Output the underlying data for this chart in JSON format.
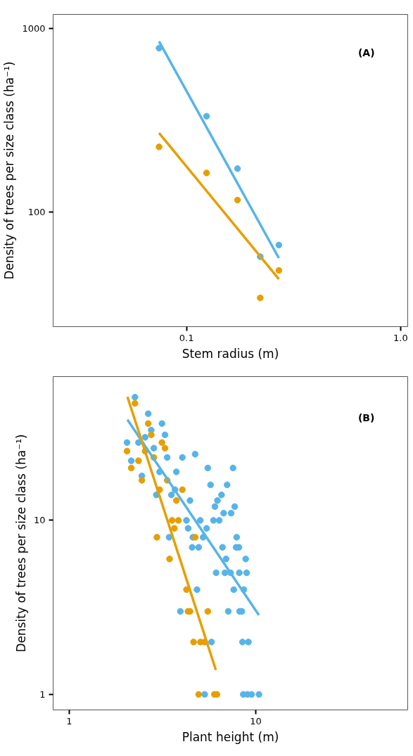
{
  "chart_data": [
    {
      "type": "scatter",
      "xlabel": "Stem radius (m)",
      "ylabel": "Density of trees per size class (ha⁻¹)",
      "annotations": [
        "(A)"
      ],
      "log": "xy",
      "grid": false,
      "xlim": [
        0.0238,
        1.08
      ],
      "ylim": [
        23.7,
        1190
      ],
      "xticks": [
        0.1,
        {
          "value": 1,
          "label": "1.0"
        }
      ],
      "yticks": [
        100,
        1000
      ],
      "series": [
        {
          "marker": "circle",
          "color": "#56b4e9",
          "x": [
            0.0744,
            0.124,
            0.173,
            0.221,
            0.27
          ],
          "values": [
            780,
            332,
            172,
            57,
            66
          ]
        },
        {
          "marker": "circle",
          "color": "#e69f00",
          "x": [
            0.0744,
            0.124,
            0.173,
            0.221,
            0.27
          ],
          "values": [
            226,
            163,
            116,
            34,
            48
          ]
        },
        {
          "type": "line",
          "marker": "none",
          "color": "#56b4e9",
          "x": [
            0.0744,
            0.27
          ],
          "values": [
            848,
            56
          ]
        },
        {
          "type": "line",
          "marker": "none",
          "color": "#e69f00",
          "x": [
            0.0744,
            0.27
          ],
          "values": [
            269,
            43
          ]
        }
      ]
    },
    {
      "type": "scatter",
      "xlabel": "Plant height (m)",
      "ylabel": "Density of trees per size class (ha⁻¹)",
      "annotations": [
        "(B)"
      ],
      "log": "xy",
      "grid": false,
      "xlim": [
        0.819,
        65.3
      ],
      "ylim": [
        0.814,
        67
      ],
      "xticks": [
        1,
        10
      ],
      "yticks": [
        1,
        10
      ],
      "series": [
        {
          "marker": "circle",
          "color": "#56b4e9",
          "x": [
            2.25,
            2.65,
            3.14,
            2.75,
            3.26,
            2.55,
            2.04,
            2.35,
            2.84,
            4.73,
            3.35,
            4.04,
            2.15,
            5.53,
            7.55,
            3.05,
            3.75,
            2.45,
            5.72,
            7.02,
            3.69,
            2.93,
            3.53,
            6.55,
            4.44,
            6.23,
            6.04,
            7.71,
            6.73,
            7.38,
            4.25,
            5.04,
            5.93,
            6.37,
            4.34,
            5.45,
            3.43,
            4.6,
            5.22,
            7.9,
            4.56,
            4.94,
            6.63,
            7.85,
            8.12,
            6.93,
            8.83,
            6.13,
            6.83,
            7.33,
            8.16,
            8.93,
            4.84,
            7.62,
            8.63,
            3.94,
            7.12,
            8.19,
            8.42,
            5.79,
            8.49,
            9.13,
            5.32,
            8.57,
            9.03,
            9.5,
            10.4
          ],
          "values": [
            51,
            41,
            36,
            33,
            31,
            30,
            28,
            28,
            26,
            24,
            23,
            23,
            22,
            20,
            20,
            19,
            19,
            18,
            16,
            16,
            15,
            14,
            14,
            14,
            13,
            13,
            12,
            12,
            11,
            11,
            10,
            10,
            10,
            10,
            9,
            9,
            8,
            8,
            8,
            8,
            7,
            7,
            7,
            7,
            7,
            6,
            6,
            5,
            5,
            5,
            5,
            5,
            4,
            4,
            4,
            3,
            3,
            3,
            3,
            2,
            2,
            2,
            1,
            1,
            1,
            1,
            1
          ]
        },
        {
          "marker": "circle",
          "color": "#e69f00",
          "x": [
            2.25,
            2.65,
            2.75,
            3.14,
            3.26,
            2.04,
            2.55,
            2.35,
            2.84,
            2.15,
            2.45,
            3.35,
            3.05,
            4.04,
            3.75,
            3.56,
            3.85,
            3.66,
            2.95,
            4.74,
            3.45,
            4.25,
            4.33,
            4.44,
            5.53,
            4.64,
            5.05,
            5.32,
            4.94,
            6.0,
            6.19
          ],
          "values": [
            47,
            36,
            31,
            28,
            26,
            25,
            25,
            22,
            23,
            20,
            17,
            17,
            15,
            15,
            13,
            10,
            10,
            9,
            8,
            8,
            6,
            4,
            3,
            3,
            3,
            2,
            2,
            2,
            1,
            1,
            1
          ]
        },
        {
          "type": "line",
          "marker": "none",
          "color": "#56b4e9",
          "x": [
            2.05,
            10.4
          ],
          "values": [
            37.9,
            2.85
          ]
        },
        {
          "type": "line",
          "marker": "none",
          "color": "#e69f00",
          "x": [
            2.05,
            6.11
          ],
          "values": [
            51.3,
            1.38
          ]
        }
      ]
    }
  ]
}
